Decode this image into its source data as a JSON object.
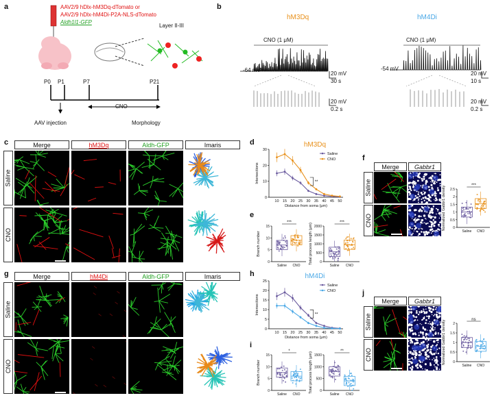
{
  "panel_letters": {
    "a": "a",
    "b": "b",
    "c": "c",
    "d": "d",
    "e": "e",
    "f": "f",
    "g": "g",
    "h": "h",
    "i": "i",
    "j": "j"
  },
  "a": {
    "line1": "AAV2/9 hDlx-hM3Dq-dTomato or",
    "line2": "AAV2/9 hDlx-hM4Di-P2A-NLS-dTomato",
    "line3": "Aldh1l1-GFP",
    "layer": "Layer II-III",
    "timepoints": [
      "P0",
      "P1",
      "P7",
      "P21"
    ],
    "cno": "CNO",
    "aav": "AAV injection",
    "morph": "Morphology"
  },
  "b": {
    "hm3dq": {
      "title": "hM3Dq",
      "cno": "CNO (1 μM)",
      "vm": "-64 mV",
      "sb1": "20 mV",
      "sb1t": "30 s",
      "sb2": "20 mV",
      "sb2t": "0.2 s"
    },
    "hm4di": {
      "title": "hM4Di",
      "cno": "CNO (1 μM)",
      "vm": "-54 mV",
      "sb1": "20 mV",
      "sb1t": "10 s",
      "sb2": "20 mV",
      "sb2t": "0.2 s"
    }
  },
  "headers_c": [
    "Merge",
    "hM3Dq",
    "Aldh-GFP",
    "Imaris"
  ],
  "headers_g": [
    "Merge",
    "hM4Di",
    "Aldh-GFP",
    "Imaris"
  ],
  "rows": [
    "Saline",
    "CNO"
  ],
  "colors": {
    "saline": "#6a5a9e",
    "cno_m3": "#e8901a",
    "cno_m4": "#4aa8e6",
    "title_m3": "#e8901a",
    "title_m4": "#4aa8e6",
    "red": "#e01010",
    "green": "#22c022"
  },
  "chart_data": [
    {
      "id": "d",
      "type": "line",
      "title": "hM3Dq",
      "xlabel": "Distance from soma (μm)",
      "ylabel": "Intersections",
      "x": [
        10,
        15,
        20,
        25,
        30,
        35,
        40,
        45,
        50
      ],
      "ylim": [
        0,
        30
      ],
      "yticks": [
        0,
        10,
        20,
        30
      ],
      "series": [
        {
          "name": "Saline",
          "values": [
            15,
            16,
            12,
            9,
            4,
            2,
            1,
            0.5,
            0.2
          ]
        },
        {
          "name": "CNO",
          "values": [
            25,
            27,
            23,
            17,
            9,
            5,
            2,
            1,
            0.5
          ]
        }
      ],
      "sig": "**",
      "legend": "top-right"
    },
    {
      "id": "h",
      "type": "line",
      "title": "hM4Di",
      "xlabel": "Distance from soma (μm)",
      "ylabel": "Intersections",
      "x": [
        10,
        15,
        20,
        25,
        30,
        35,
        40,
        45,
        50
      ],
      "ylim": [
        0,
        25
      ],
      "yticks": [
        0,
        5,
        10,
        15,
        20,
        25
      ],
      "series": [
        {
          "name": "Saline",
          "values": [
            17,
            19,
            16,
            11,
            7,
            3,
            1.5,
            0.5,
            0.2
          ]
        },
        {
          "name": "CNO",
          "values": [
            12,
            12,
            9,
            6,
            3,
            1.5,
            0.5,
            0.2,
            0.1
          ]
        }
      ],
      "sig": "**",
      "legend": "top-right"
    },
    {
      "id": "e1",
      "type": "box",
      "ylabel": "Branch number",
      "categories": [
        "Saline",
        "CNO"
      ],
      "ylim": [
        0,
        15
      ],
      "yticks": [
        0,
        5,
        10,
        15
      ],
      "medians": [
        7,
        9
      ],
      "sig": "***"
    },
    {
      "id": "e2",
      "type": "box",
      "ylabel": "Total process length (μm)",
      "categories": [
        "Saline",
        "CNO"
      ],
      "ylim": [
        0,
        2000
      ],
      "yticks": [
        0,
        500,
        1000,
        1500,
        2000
      ],
      "medians": [
        550,
        950
      ],
      "sig": "***"
    },
    {
      "id": "i1",
      "type": "box",
      "ylabel": "Branch number",
      "categories": [
        "Saline",
        "CNO"
      ],
      "ylim": [
        0,
        15
      ],
      "yticks": [
        0,
        5,
        10,
        15
      ],
      "medians": [
        7.5,
        6
      ],
      "sig": "*"
    },
    {
      "id": "i2",
      "type": "box",
      "ylabel": "Total process length (μm)",
      "categories": [
        "Saline",
        "CNO"
      ],
      "ylim": [
        0,
        1500
      ],
      "yticks": [
        0,
        500,
        1000,
        1500
      ],
      "medians": [
        800,
        400
      ],
      "sig": "**"
    },
    {
      "id": "f",
      "type": "box",
      "ylabel": "Normalized Gabbr1 density",
      "categories": [
        "Saline",
        "CNO"
      ],
      "ylim": [
        0,
        2.5
      ],
      "yticks": [
        0,
        0.5,
        1.0,
        1.5,
        2.0,
        2.5
      ],
      "medians": [
        1.0,
        1.55
      ],
      "sig": "***"
    },
    {
      "id": "j",
      "type": "box",
      "ylabel": "Normalized Gabbr1 density",
      "categories": [
        "Saline",
        "CNO"
      ],
      "ylim": [
        0,
        2.0
      ],
      "yticks": [
        0,
        0.5,
        1.0,
        1.5,
        2.0
      ],
      "medians": [
        1.0,
        0.8
      ],
      "sig": "ns"
    }
  ],
  "f_headers": [
    "Merge",
    "Gabbr1"
  ],
  "j_headers": [
    "Merge",
    "Gabbr1"
  ]
}
